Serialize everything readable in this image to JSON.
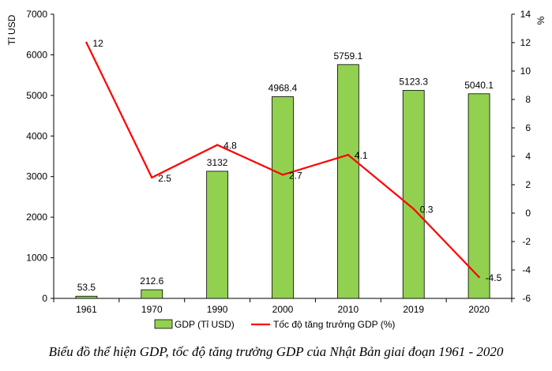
{
  "chart_data": {
    "type": "bar+line",
    "categories": [
      "1961",
      "1970",
      "1990",
      "2000",
      "2010",
      "2019",
      "2020"
    ],
    "series": [
      {
        "name": "GDP (Tỉ USD)",
        "type": "bar",
        "axis": "left",
        "color": "#92D050",
        "values": [
          53.5,
          212.6,
          3132,
          4968.4,
          5759.1,
          5123.3,
          5040.1
        ],
        "labels": [
          "53.5",
          "212.6",
          "3132",
          "4968.4",
          "5759.1",
          "5123.3",
          "5040.1"
        ]
      },
      {
        "name": "Tốc độ tăng trưởng GDP (%)",
        "type": "line",
        "axis": "right",
        "color": "#FF0000",
        "values": [
          12,
          2.5,
          4.8,
          2.7,
          4.1,
          0.3,
          -4.5
        ],
        "labels": [
          "12",
          "2.5",
          "4.8",
          "2.7",
          "4.1",
          "0.3",
          "-4.5"
        ]
      }
    ],
    "y_left": {
      "label": "Tỉ USD",
      "range": [
        0,
        7000
      ],
      "ticks": [
        "0",
        "1000",
        "2000",
        "3000",
        "4000",
        "5000",
        "6000",
        "7000"
      ]
    },
    "y_right": {
      "label": "%",
      "range": [
        -6,
        14
      ],
      "ticks": [
        "-6",
        "-4",
        "-2",
        "0",
        "2",
        "4",
        "6",
        "8",
        "10",
        "12",
        "14"
      ]
    },
    "legend_position": "bottom"
  },
  "caption": "Biểu đồ thể hiện GDP, tốc độ tăng trưởng GDP của Nhật Bản giai đoạn 1961 - 2020"
}
